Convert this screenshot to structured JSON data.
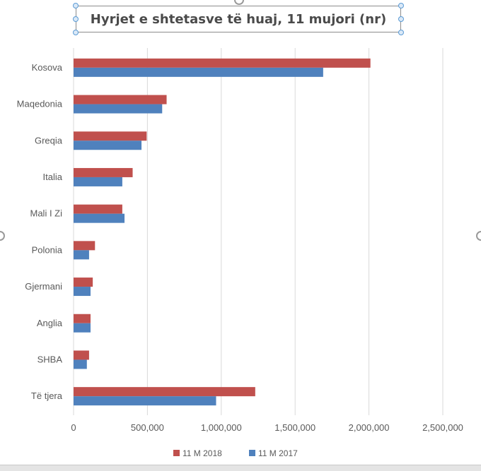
{
  "chart_data": {
    "type": "bar",
    "orientation": "horizontal",
    "title": "Hyrjet e shtetasve të huaj, 11 mujori (nr)",
    "categories": [
      "Kosova",
      "Maqedonia",
      "Greqia",
      "Italia",
      "Mali I Zi",
      "Polonia",
      "Gjermani",
      "Anglia",
      "SHBA",
      "Të tjera"
    ],
    "series": [
      {
        "name": "11 M 2018",
        "color": "#c0504d",
        "values": [
          2010000,
          630000,
          495000,
          400000,
          330000,
          145000,
          130000,
          115000,
          105000,
          1230000
        ]
      },
      {
        "name": "11 M 2017",
        "color": "#4f81bd",
        "values": [
          1690000,
          600000,
          460000,
          330000,
          345000,
          105000,
          115000,
          115000,
          90000,
          965000
        ]
      }
    ],
    "xlim": [
      0,
      2500000
    ],
    "x_ticks": [
      "0",
      "500,000",
      "1,000,000",
      "1,500,000",
      "2,000,000",
      "2,500,000"
    ],
    "grid": true,
    "legend": "bottom"
  }
}
